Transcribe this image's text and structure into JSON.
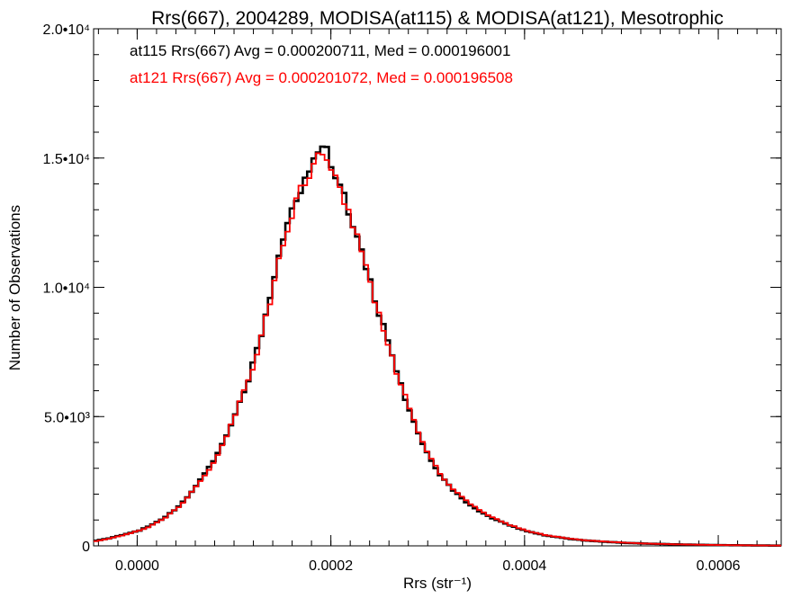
{
  "chart_data": {
    "type": "line",
    "title": "Rrs(667), 2004289, MODISA(at115) & MODISA(at121), Mesotrophic",
    "xlabel": "Rrs (str⁻¹)",
    "ylabel": "Number of Observations",
    "xlim": [
      -4.5e-05,
      0.000665
    ],
    "ylim": [
      0,
      20000
    ],
    "x_ticks": [
      {
        "value": 0.0,
        "label": "0.0000"
      },
      {
        "value": 0.0002,
        "label": "0.0002"
      },
      {
        "value": 0.0004,
        "label": "0.0004"
      },
      {
        "value": 0.0006,
        "label": "0.0006"
      }
    ],
    "y_ticks": [
      {
        "value": 0,
        "label": "0"
      },
      {
        "value": 5000,
        "label": "5.0•10³"
      },
      {
        "value": 10000,
        "label": "1.0•10⁴"
      },
      {
        "value": 15000,
        "label": "1.5•10⁴"
      },
      {
        "value": 20000,
        "label": "2.0•10⁴"
      }
    ],
    "grid": false,
    "annotations": [
      {
        "text": "at115 Rrs(667) Avg = 0.000200711, Med = 0.000196001",
        "color": "#000000"
      },
      {
        "text": "at121 Rrs(667) Avg = 0.000201072, Med = 0.000196508",
        "color": "#ff0000"
      }
    ],
    "series": [
      {
        "color": "#000000",
        "x": [
          -4.5e-05,
          -3e-05,
          -1.5e-05,
          0.0,
          1e-05,
          2e-05,
          3e-05,
          4e-05,
          5e-05,
          6e-05,
          7e-05,
          8e-05,
          9e-05,
          0.0001,
          0.00011,
          0.00012,
          0.00013,
          0.00014,
          0.00015,
          0.00016,
          0.00017,
          0.00018,
          0.000185,
          0.00019,
          0.000195,
          0.0002,
          0.000205,
          0.00021,
          0.00022,
          0.00023,
          0.00024,
          0.00025,
          0.00026,
          0.00027,
          0.00028,
          0.00029,
          0.0003,
          0.00031,
          0.00032,
          0.00034,
          0.00036,
          0.00038,
          0.0004,
          0.00042,
          0.00044,
          0.00046,
          0.00048,
          0.0005,
          0.00052,
          0.00055,
          0.00058,
          0.00061,
          0.00064,
          0.000665
        ],
        "y": [
          200,
          300,
          450,
          600,
          750,
          950,
          1200,
          1500,
          1900,
          2400,
          2900,
          3500,
          4300,
          5200,
          6200,
          7300,
          8800,
          10400,
          12000,
          13300,
          14200,
          14800,
          15200,
          15500,
          15100,
          14600,
          14100,
          13600,
          12600,
          11300,
          10000,
          8700,
          7400,
          6200,
          5100,
          4200,
          3400,
          2800,
          2300,
          1600,
          1150,
          820,
          560,
          400,
          290,
          210,
          160,
          120,
          90,
          60,
          40,
          25,
          15,
          10
        ]
      },
      {
        "color": "#ff0000",
        "x": [
          -4.5e-05,
          -3e-05,
          -1.5e-05,
          0.0,
          1e-05,
          2e-05,
          3e-05,
          4e-05,
          5e-05,
          6e-05,
          7e-05,
          8e-05,
          9e-05,
          0.0001,
          0.00011,
          0.00012,
          0.00013,
          0.00014,
          0.00015,
          0.00016,
          0.00017,
          0.00018,
          0.000185,
          0.00019,
          0.000195,
          0.0002,
          0.000205,
          0.00021,
          0.00022,
          0.00023,
          0.00024,
          0.00025,
          0.00026,
          0.00027,
          0.00028,
          0.00029,
          0.0003,
          0.00031,
          0.00032,
          0.00034,
          0.00036,
          0.00038,
          0.0004,
          0.00042,
          0.00044,
          0.00046,
          0.00048,
          0.0005,
          0.00052,
          0.00055,
          0.00058,
          0.00061,
          0.00064,
          0.000665
        ],
        "y": [
          180,
          290,
          430,
          590,
          740,
          930,
          1180,
          1480,
          1870,
          2360,
          2860,
          3460,
          4250,
          5150,
          6150,
          7250,
          8700,
          10300,
          11900,
          13200,
          14100,
          14700,
          15000,
          15250,
          15000,
          14500,
          14000,
          13500,
          12550,
          11250,
          9950,
          8700,
          7400,
          6250,
          5150,
          4250,
          3450,
          2850,
          2350,
          1650,
          1180,
          840,
          580,
          410,
          300,
          215,
          165,
          125,
          92,
          62,
          42,
          27,
          16,
          10
        ]
      }
    ]
  }
}
